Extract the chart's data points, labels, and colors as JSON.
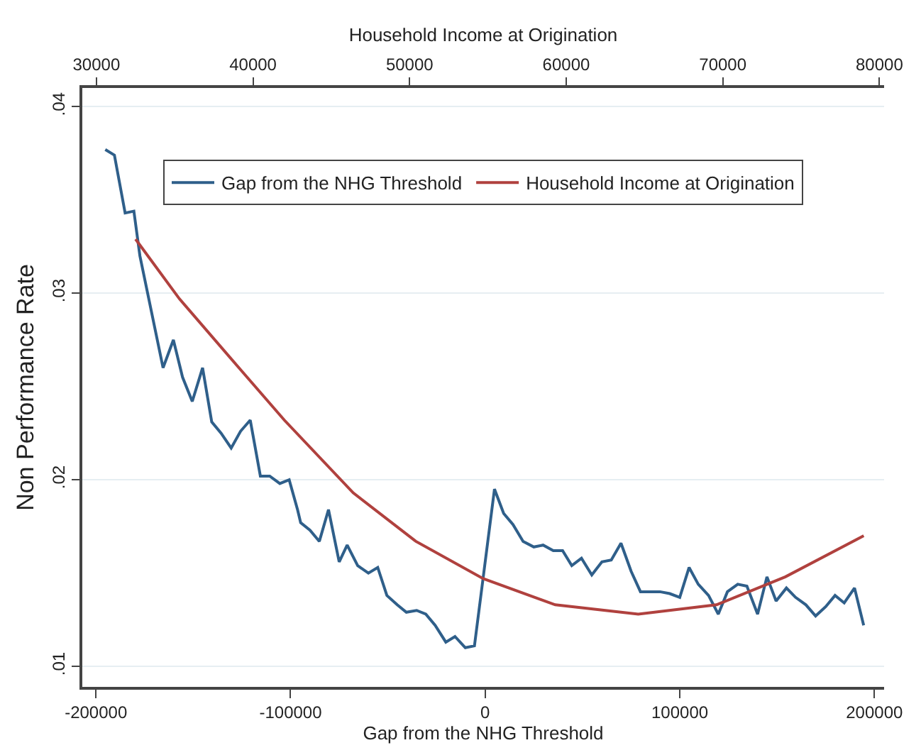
{
  "chart_data": {
    "type": "line",
    "xlabel": "Gap from the NHG Threshold",
    "x2label": "Household Income at Origination",
    "ylabel": "Non Performance Rate",
    "xlim": [
      -207000,
      205000
    ],
    "xticks": [
      -200000,
      -100000,
      0,
      100000,
      200000
    ],
    "x2lim": [
      29100,
      80300
    ],
    "x2ticks": [
      30000,
      40000,
      50000,
      60000,
      70000,
      80000
    ],
    "ylim": [
      0.0089,
      0.041
    ],
    "yticks": [
      {
        "value": 0.01,
        "label": ".01"
      },
      {
        "value": 0.02,
        "label": ".02"
      },
      {
        "value": 0.03,
        "label": ".03"
      },
      {
        "value": 0.04,
        "label": ".04"
      }
    ],
    "grid": "y",
    "legend": "top",
    "line_style": "solid",
    "marker": "none",
    "series": [
      {
        "name": "Gap from the NHG Threshold",
        "color": "#2f5f8a",
        "x": [
          -195200,
          -190500,
          -185000,
          -180500,
          -177400,
          -165500,
          -160200,
          -155500,
          -150500,
          -145200,
          -140500,
          -135700,
          -130500,
          -125700,
          -120700,
          -115500,
          -110700,
          -105500,
          -100700,
          -96400,
          -94800,
          -90000,
          -85200,
          -80500,
          -75000,
          -70900,
          -65500,
          -60000,
          -55200,
          -50500,
          -45200,
          -40500,
          -35200,
          -30500,
          -25700,
          -20200,
          -15500,
          -10200,
          -5500,
          4800,
          9500,
          14300,
          19500,
          25000,
          29800,
          35000,
          39800,
          44500,
          49500,
          54800,
          60000,
          64800,
          69800,
          75000,
          79800,
          85000,
          89800,
          94800,
          100000,
          104800,
          109500,
          114800,
          119800,
          124500,
          129800,
          134500,
          140000,
          144800,
          149500,
          154800,
          159500,
          164800,
          169800,
          175000,
          179800,
          184500,
          189800,
          194500
        ],
        "values": [
          0.0377,
          0.0374,
          0.0343,
          0.0344,
          0.032,
          0.026,
          0.0275,
          0.0255,
          0.0242,
          0.026,
          0.0231,
          0.0225,
          0.0217,
          0.0226,
          0.0232,
          0.0202,
          0.0202,
          0.0198,
          0.02,
          0.0184,
          0.0177,
          0.0173,
          0.0167,
          0.0184,
          0.0156,
          0.0165,
          0.0154,
          0.015,
          0.0153,
          0.0138,
          0.0133,
          0.0129,
          0.013,
          0.0128,
          0.0122,
          0.0113,
          0.0116,
          0.011,
          0.0111,
          0.0195,
          0.0182,
          0.0176,
          0.0167,
          0.0164,
          0.0165,
          0.0162,
          0.0162,
          0.0154,
          0.0158,
          0.0149,
          0.0156,
          0.0157,
          0.0166,
          0.0151,
          0.014,
          0.014,
          0.014,
          0.0139,
          0.0137,
          0.0153,
          0.0144,
          0.0138,
          0.0128,
          0.014,
          0.0144,
          0.0143,
          0.0128,
          0.0148,
          0.0135,
          0.0142,
          0.0137,
          0.0133,
          0.0127,
          0.0132,
          0.0138,
          0.0134,
          0.0142,
          0.0122
        ]
      },
      {
        "name": "Household Income at Origination",
        "color": "#b0413e",
        "axis": "x2",
        "x": [
          32500,
          35300,
          39000,
          42000,
          46400,
          50400,
          54700,
          59300,
          64600,
          69600,
          74000,
          79000
        ],
        "values": [
          0.0329,
          0.0297,
          0.0261,
          0.0232,
          0.0193,
          0.0167,
          0.0147,
          0.0133,
          0.0128,
          0.0133,
          0.0148,
          0.017
        ]
      }
    ]
  }
}
